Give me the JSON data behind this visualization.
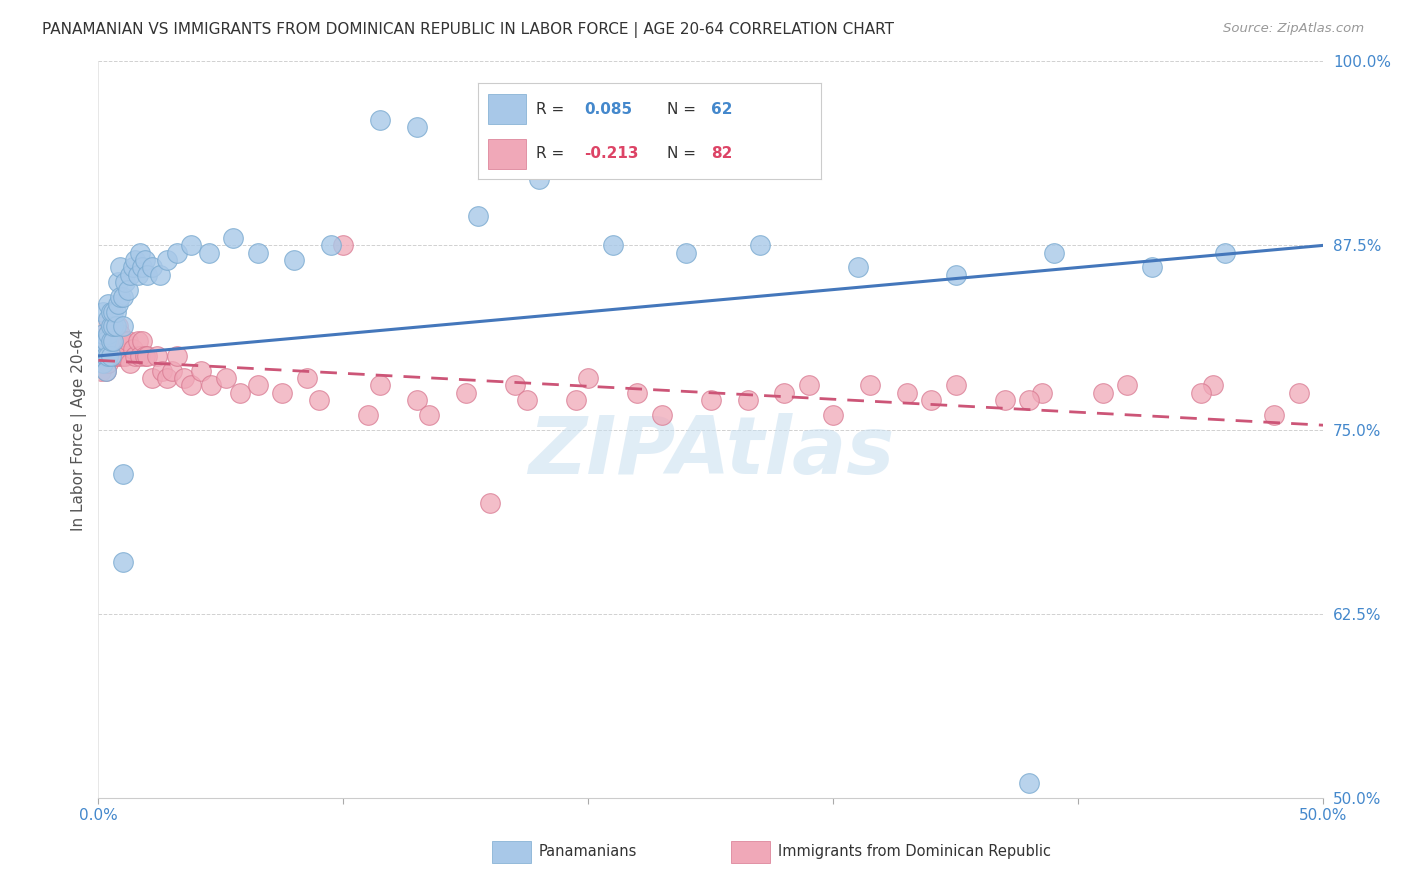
{
  "title": "PANAMANIAN VS IMMIGRANTS FROM DOMINICAN REPUBLIC IN LABOR FORCE | AGE 20-64 CORRELATION CHART",
  "source": "Source: ZipAtlas.com",
  "ylabel": "In Labor Force | Age 20-64",
  "xlim": [
    0.0,
    0.5
  ],
  "ylim": [
    0.5,
    1.0
  ],
  "xticks": [
    0.0,
    0.1,
    0.2,
    0.3,
    0.4,
    0.5
  ],
  "xticklabels_show": [
    "0.0%",
    "",
    "",
    "",
    "",
    "50.0%"
  ],
  "yticks": [
    0.5,
    0.625,
    0.75,
    0.875,
    1.0
  ],
  "yticklabels": [
    "50.0%",
    "62.5%",
    "75.0%",
    "87.5%",
    "100.0%"
  ],
  "blue_color": "#A8C8E8",
  "blue_edge_color": "#7AAAD0",
  "pink_color": "#F0A8B8",
  "pink_edge_color": "#D87890",
  "blue_line_color": "#4477BB",
  "pink_line_color": "#CC5577",
  "watermark": "ZIPAtlas",
  "watermark_color": "#C8DFF0",
  "blue_r": "0.085",
  "blue_n": "62",
  "pink_r": "-0.213",
  "pink_n": "82",
  "blue_trendline": [
    0.8,
    0.875
  ],
  "pink_trendline": [
    0.797,
    0.753
  ],
  "blue_x": [
    0.001,
    0.001,
    0.002,
    0.002,
    0.002,
    0.003,
    0.003,
    0.003,
    0.004,
    0.004,
    0.004,
    0.004,
    0.005,
    0.005,
    0.005,
    0.005,
    0.006,
    0.006,
    0.006,
    0.007,
    0.007,
    0.008,
    0.008,
    0.009,
    0.009,
    0.01,
    0.01,
    0.011,
    0.012,
    0.013,
    0.014,
    0.015,
    0.016,
    0.017,
    0.018,
    0.019,
    0.02,
    0.022,
    0.025,
    0.028,
    0.032,
    0.038,
    0.045,
    0.055,
    0.065,
    0.08,
    0.095,
    0.115,
    0.13,
    0.155,
    0.18,
    0.21,
    0.24,
    0.27,
    0.31,
    0.35,
    0.39,
    0.43,
    0.46,
    0.01,
    0.01,
    0.38
  ],
  "blue_y": [
    0.8,
    0.81,
    0.795,
    0.815,
    0.83,
    0.8,
    0.81,
    0.79,
    0.8,
    0.815,
    0.825,
    0.835,
    0.8,
    0.81,
    0.82,
    0.83,
    0.81,
    0.82,
    0.83,
    0.82,
    0.83,
    0.835,
    0.85,
    0.84,
    0.86,
    0.82,
    0.84,
    0.85,
    0.845,
    0.855,
    0.86,
    0.865,
    0.855,
    0.87,
    0.86,
    0.865,
    0.855,
    0.86,
    0.855,
    0.865,
    0.87,
    0.875,
    0.87,
    0.88,
    0.87,
    0.865,
    0.875,
    0.96,
    0.955,
    0.895,
    0.92,
    0.875,
    0.87,
    0.875,
    0.86,
    0.855,
    0.87,
    0.86,
    0.87,
    0.72,
    0.66,
    0.51
  ],
  "pink_x": [
    0.001,
    0.001,
    0.001,
    0.002,
    0.002,
    0.002,
    0.003,
    0.003,
    0.003,
    0.004,
    0.004,
    0.004,
    0.005,
    0.005,
    0.005,
    0.006,
    0.006,
    0.007,
    0.007,
    0.008,
    0.008,
    0.009,
    0.009,
    0.01,
    0.01,
    0.011,
    0.012,
    0.013,
    0.014,
    0.015,
    0.016,
    0.017,
    0.018,
    0.019,
    0.02,
    0.022,
    0.024,
    0.026,
    0.028,
    0.03,
    0.032,
    0.035,
    0.038,
    0.042,
    0.046,
    0.052,
    0.058,
    0.065,
    0.075,
    0.085,
    0.1,
    0.115,
    0.13,
    0.15,
    0.17,
    0.195,
    0.22,
    0.25,
    0.28,
    0.315,
    0.35,
    0.385,
    0.42,
    0.455,
    0.49,
    0.29,
    0.33,
    0.37,
    0.41,
    0.45,
    0.48,
    0.175,
    0.2,
    0.23,
    0.265,
    0.3,
    0.34,
    0.38,
    0.09,
    0.11,
    0.135,
    0.16
  ],
  "pink_y": [
    0.8,
    0.81,
    0.79,
    0.795,
    0.81,
    0.82,
    0.8,
    0.79,
    0.81,
    0.805,
    0.795,
    0.815,
    0.805,
    0.81,
    0.82,
    0.8,
    0.815,
    0.81,
    0.8,
    0.82,
    0.81,
    0.8,
    0.815,
    0.8,
    0.81,
    0.8,
    0.81,
    0.795,
    0.805,
    0.8,
    0.81,
    0.8,
    0.81,
    0.8,
    0.8,
    0.785,
    0.8,
    0.79,
    0.785,
    0.79,
    0.8,
    0.785,
    0.78,
    0.79,
    0.78,
    0.785,
    0.775,
    0.78,
    0.775,
    0.785,
    0.875,
    0.78,
    0.77,
    0.775,
    0.78,
    0.77,
    0.775,
    0.77,
    0.775,
    0.78,
    0.78,
    0.775,
    0.78,
    0.78,
    0.775,
    0.78,
    0.775,
    0.77,
    0.775,
    0.775,
    0.76,
    0.77,
    0.785,
    0.76,
    0.77,
    0.76,
    0.77,
    0.77,
    0.77,
    0.76,
    0.76,
    0.7
  ]
}
